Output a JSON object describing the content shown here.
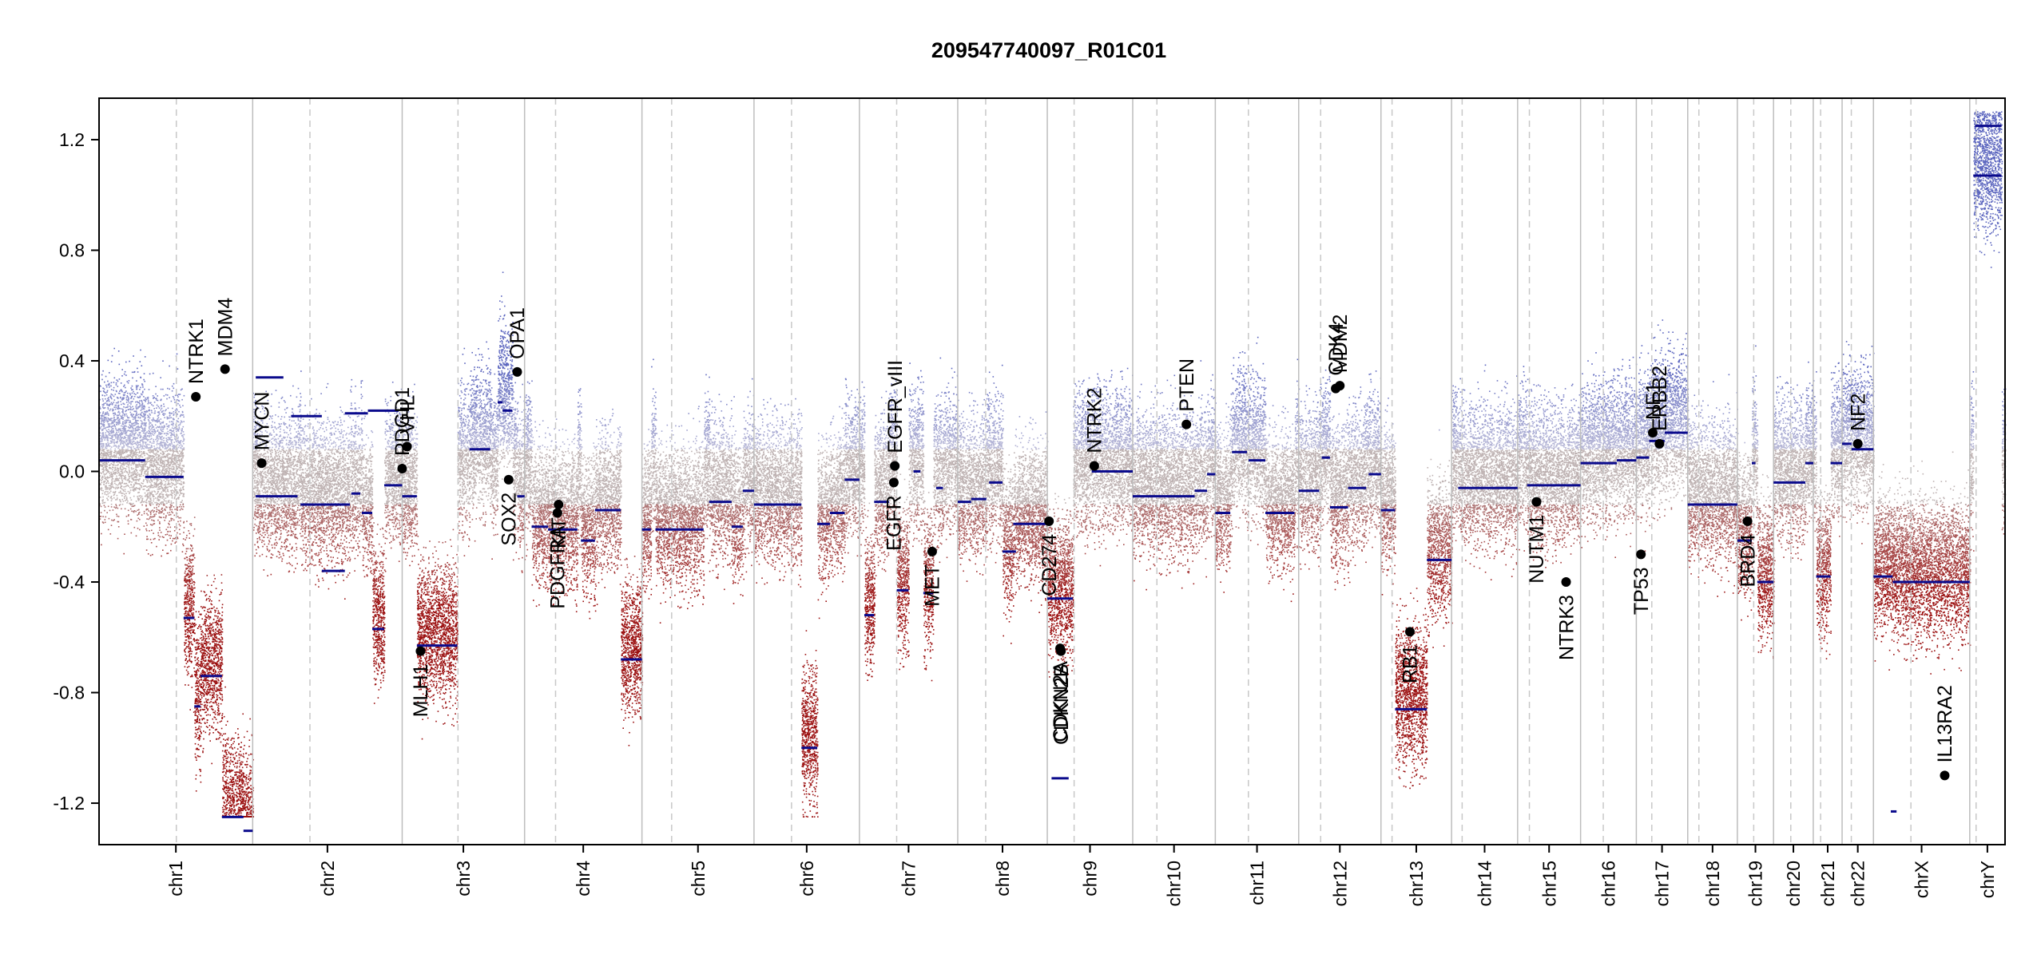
{
  "chart_data": {
    "type": "scatter",
    "title": "209547740097_R01C01",
    "xlabel": "",
    "ylabel": "",
    "ylim": [
      -1.35,
      1.35
    ],
    "y_ticks": [
      1.2,
      0.8,
      0.4,
      0.0,
      -0.4,
      -0.8,
      -1.2
    ],
    "y_tick_labels": [
      "1.2",
      "0.8",
      "0.4",
      "0.0",
      "-0.4",
      "-0.8",
      "-1.2"
    ],
    "grid": false,
    "colors": {
      "gain": "#7b86c4",
      "loss": "#a01010",
      "neutral": "#b9a8a8",
      "segment": "#0a0a8c",
      "gene": "#000000"
    },
    "chromosomes": [
      {
        "name": "chr1",
        "length": 248.9,
        "centromere": 0.503
      },
      {
        "name": "chr2",
        "length": 242.2,
        "centromere": 0.383
      },
      {
        "name": "chr3",
        "length": 198.3,
        "centromere": 0.456
      },
      {
        "name": "chr4",
        "length": 190.2,
        "centromere": 0.264
      },
      {
        "name": "chr5",
        "length": 181.5,
        "centromere": 0.265
      },
      {
        "name": "chr6",
        "length": 170.8,
        "centromere": 0.356
      },
      {
        "name": "chr7",
        "length": 159.3,
        "centromere": 0.379
      },
      {
        "name": "chr8",
        "length": 145.1,
        "centromere": 0.312
      },
      {
        "name": "chr9",
        "length": 138.4,
        "centromere": 0.314
      },
      {
        "name": "chr10",
        "length": 133.8,
        "centromere": 0.293
      },
      {
        "name": "chr11",
        "length": 135.1,
        "centromere": 0.397
      },
      {
        "name": "chr12",
        "length": 133.3,
        "centromere": 0.267
      },
      {
        "name": "chr13",
        "length": 114.4,
        "centromere": 0.157
      },
      {
        "name": "chr14",
        "length": 107.0,
        "centromere": 0.16
      },
      {
        "name": "chr15",
        "length": 102.0,
        "centromere": 0.187
      },
      {
        "name": "chr16",
        "length": 90.3,
        "centromere": 0.407
      },
      {
        "name": "chr17",
        "length": 83.3,
        "centromere": 0.301
      },
      {
        "name": "chr18",
        "length": 80.4,
        "centromere": 0.225
      },
      {
        "name": "chr19",
        "length": 58.6,
        "centromere": 0.452
      },
      {
        "name": "chr20",
        "length": 64.4,
        "centromere": 0.434
      },
      {
        "name": "chr21",
        "length": 46.7,
        "centromere": 0.255
      },
      {
        "name": "chr22",
        "length": 50.8,
        "centromere": 0.294
      },
      {
        "name": "chrX",
        "length": 156.0,
        "centromere": 0.389
      },
      {
        "name": "chrY",
        "length": 57.2,
        "centromere": 0.18
      }
    ],
    "segments": [
      {
        "chr": "chr1",
        "start": 0.0,
        "end": 0.3,
        "value": 0.04
      },
      {
        "chr": "chr1",
        "start": 0.3,
        "end": 0.55,
        "value": -0.02
      },
      {
        "chr": "chr1",
        "start": 0.55,
        "end": 0.62,
        "value": -0.53
      },
      {
        "chr": "chr1",
        "start": 0.62,
        "end": 0.66,
        "value": -0.85
      },
      {
        "chr": "chr1",
        "start": 0.66,
        "end": 0.8,
        "value": -0.74
      },
      {
        "chr": "chr1",
        "start": 0.8,
        "end": 0.94,
        "value": -1.25
      },
      {
        "chr": "chr1",
        "start": 0.94,
        "end": 1.0,
        "value": -1.3
      },
      {
        "chr": "chr1",
        "start": 1.02,
        "end": 1.2,
        "value": 0.34
      },
      {
        "chr": "chr1",
        "start": 1.25,
        "end": 1.45,
        "value": 0.2
      },
      {
        "chr": "chr1",
        "start": 1.45,
        "end": 1.6,
        "value": -0.36
      },
      {
        "chr": "chr1",
        "start": 1.6,
        "end": 1.75,
        "value": 0.21
      },
      {
        "chr": "chr1",
        "start": 1.75,
        "end": 1.95,
        "value": 0.22
      },
      {
        "chr": "chr2",
        "start": 0.02,
        "end": 0.3,
        "value": -0.09
      },
      {
        "chr": "chr2",
        "start": 0.32,
        "end": 0.65,
        "value": -0.12
      },
      {
        "chr": "chr2",
        "start": 0.66,
        "end": 0.72,
        "value": -0.08
      },
      {
        "chr": "chr2",
        "start": 0.73,
        "end": 0.8,
        "value": -0.15
      },
      {
        "chr": "chr2",
        "start": 0.8,
        "end": 0.88,
        "value": -0.57
      },
      {
        "chr": "chr2",
        "start": 0.88,
        "end": 1.0,
        "value": -0.05
      },
      {
        "chr": "chr3",
        "start": 0.0,
        "end": 0.12,
        "value": -0.09
      },
      {
        "chr": "chr3",
        "start": 0.12,
        "end": 0.45,
        "value": -0.63
      },
      {
        "chr": "chr3",
        "start": 0.55,
        "end": 0.72,
        "value": 0.08
      },
      {
        "chr": "chr3",
        "start": 0.78,
        "end": 0.82,
        "value": 0.25
      },
      {
        "chr": "chr3",
        "start": 0.82,
        "end": 0.9,
        "value": 0.22
      },
      {
        "chr": "chr3",
        "start": 0.94,
        "end": 1.0,
        "value": -0.09
      },
      {
        "chr": "chr4",
        "start": 0.06,
        "end": 0.2,
        "value": -0.2
      },
      {
        "chr": "chr4",
        "start": 0.2,
        "end": 0.45,
        "value": -0.21
      },
      {
        "chr": "chr4",
        "start": 0.48,
        "end": 0.6,
        "value": -0.25
      },
      {
        "chr": "chr4",
        "start": 0.6,
        "end": 0.82,
        "value": -0.14
      },
      {
        "chr": "chr4",
        "start": 0.82,
        "end": 1.0,
        "value": -0.68
      },
      {
        "chr": "chr5",
        "start": 0.0,
        "end": 0.08,
        "value": -0.21
      },
      {
        "chr": "chr5",
        "start": 0.12,
        "end": 0.55,
        "value": -0.21
      },
      {
        "chr": "chr5",
        "start": 0.6,
        "end": 0.8,
        "value": -0.11
      },
      {
        "chr": "chr5",
        "start": 0.8,
        "end": 0.9,
        "value": -0.2
      },
      {
        "chr": "chr5",
        "start": 0.9,
        "end": 1.0,
        "value": -0.07
      },
      {
        "chr": "chr6",
        "start": 0.0,
        "end": 0.45,
        "value": -0.12
      },
      {
        "chr": "chr6",
        "start": 0.45,
        "end": 0.6,
        "value": -1.0
      },
      {
        "chr": "chr6",
        "start": 0.6,
        "end": 0.72,
        "value": -0.19
      },
      {
        "chr": "chr6",
        "start": 0.72,
        "end": 0.86,
        "value": -0.15
      },
      {
        "chr": "chr6",
        "start": 0.86,
        "end": 1.0,
        "value": -0.03
      },
      {
        "chr": "chr7",
        "start": 0.05,
        "end": 0.15,
        "value": -0.52
      },
      {
        "chr": "chr7",
        "start": 0.15,
        "end": 0.3,
        "value": -0.11
      },
      {
        "chr": "chr7",
        "start": 0.38,
        "end": 0.5,
        "value": -0.43
      },
      {
        "chr": "chr7",
        "start": 0.55,
        "end": 0.62,
        "value": 0.0
      },
      {
        "chr": "chr7",
        "start": 0.65,
        "end": 0.75,
        "value": -0.44
      },
      {
        "chr": "chr7",
        "start": 0.78,
        "end": 0.85,
        "value": -0.06
      },
      {
        "chr": "chr8",
        "start": 0.0,
        "end": 0.15,
        "value": -0.11
      },
      {
        "chr": "chr8",
        "start": 0.15,
        "end": 0.32,
        "value": -0.1
      },
      {
        "chr": "chr8",
        "start": 0.35,
        "end": 0.5,
        "value": -0.04
      },
      {
        "chr": "chr8",
        "start": 0.5,
        "end": 0.65,
        "value": -0.29
      },
      {
        "chr": "chr8",
        "start": 0.62,
        "end": 1.0,
        "value": -0.19
      },
      {
        "chr": "chr9",
        "start": 0.0,
        "end": 0.3,
        "value": -0.46
      },
      {
        "chr": "chr9",
        "start": 0.05,
        "end": 0.25,
        "value": -1.11
      },
      {
        "chr": "chr9",
        "start": 0.52,
        "end": 1.0,
        "value": 0.0
      },
      {
        "chr": "chr10",
        "start": 0.0,
        "end": 0.75,
        "value": -0.09
      },
      {
        "chr": "chr10",
        "start": 0.75,
        "end": 0.9,
        "value": -0.07
      },
      {
        "chr": "chr10",
        "start": 0.9,
        "end": 1.0,
        "value": -0.01
      },
      {
        "chr": "chr11",
        "start": 0.0,
        "end": 0.18,
        "value": -0.15
      },
      {
        "chr": "chr11",
        "start": 0.2,
        "end": 0.38,
        "value": 0.07
      },
      {
        "chr": "chr11",
        "start": 0.4,
        "end": 0.6,
        "value": 0.04
      },
      {
        "chr": "chr11",
        "start": 0.6,
        "end": 0.95,
        "value": -0.15
      },
      {
        "chr": "chr12",
        "start": 0.0,
        "end": 0.25,
        "value": -0.07
      },
      {
        "chr": "chr12",
        "start": 0.28,
        "end": 0.38,
        "value": 0.05
      },
      {
        "chr": "chr12",
        "start": 0.38,
        "end": 0.6,
        "value": -0.13
      },
      {
        "chr": "chr12",
        "start": 0.6,
        "end": 0.82,
        "value": -0.06
      },
      {
        "chr": "chr12",
        "start": 0.85,
        "end": 1.0,
        "value": -0.01
      },
      {
        "chr": "chr13",
        "start": 0.0,
        "end": 0.2,
        "value": -0.14
      },
      {
        "chr": "chr13",
        "start": 0.2,
        "end": 0.65,
        "value": -0.86
      },
      {
        "chr": "chr13",
        "start": 0.65,
        "end": 1.0,
        "value": -0.32
      },
      {
        "chr": "chr14",
        "start": 0.1,
        "end": 1.0,
        "value": -0.06
      },
      {
        "chr": "chr15",
        "start": 0.15,
        "end": 1.0,
        "value": -0.05
      },
      {
        "chr": "chr16",
        "start": 0.0,
        "end": 0.65,
        "value": 0.03
      },
      {
        "chr": "chr16",
        "start": 0.65,
        "end": 1.0,
        "value": 0.04
      },
      {
        "chr": "chr17",
        "start": 0.0,
        "end": 0.25,
        "value": 0.05
      },
      {
        "chr": "chr17",
        "start": 0.25,
        "end": 0.55,
        "value": 0.11
      },
      {
        "chr": "chr17",
        "start": 0.55,
        "end": 1.0,
        "value": 0.14
      },
      {
        "chr": "chr18",
        "start": 0.0,
        "end": 1.0,
        "value": -0.12
      },
      {
        "chr": "chr19",
        "start": 0.0,
        "end": 0.4,
        "value": -0.25
      },
      {
        "chr": "chr19",
        "start": 0.4,
        "end": 0.5,
        "value": 0.03
      },
      {
        "chr": "chr19",
        "start": 0.55,
        "end": 1.0,
        "value": -0.4
      },
      {
        "chr": "chr20",
        "start": 0.0,
        "end": 0.8,
        "value": -0.04
      },
      {
        "chr": "chr20",
        "start": 0.8,
        "end": 1.0,
        "value": 0.03
      },
      {
        "chr": "chr21",
        "start": 0.1,
        "end": 0.6,
        "value": -0.38
      },
      {
        "chr": "chr21",
        "start": 0.6,
        "end": 1.0,
        "value": 0.03
      },
      {
        "chr": "chr22",
        "start": 0.0,
        "end": 0.3,
        "value": 0.1
      },
      {
        "chr": "chr22",
        "start": 0.3,
        "end": 1.0,
        "value": 0.08
      },
      {
        "chr": "chrX",
        "start": 0.0,
        "end": 0.2,
        "value": -0.38
      },
      {
        "chr": "chrX",
        "start": 0.18,
        "end": 0.24,
        "value": -1.23
      },
      {
        "chr": "chrX",
        "start": 0.2,
        "end": 1.0,
        "value": -0.4
      },
      {
        "chr": "chrY",
        "start": 0.1,
        "end": 0.9,
        "value": 1.07
      },
      {
        "chr": "chrY",
        "start": 0.15,
        "end": 0.9,
        "value": 1.25
      }
    ],
    "gene_markers": [
      {
        "label": "NTRK1",
        "chr": "chr1",
        "pos": 0.63,
        "value": 0.27,
        "anchor": "start"
      },
      {
        "label": "MDM4",
        "chr": "chr1",
        "pos": 0.82,
        "value": 0.37,
        "anchor": "start"
      },
      {
        "label": "MYCN",
        "chr": "chr2",
        "pos": 0.06,
        "value": 0.03,
        "anchor": "start"
      },
      {
        "label": "PDGD1",
        "chr": "chr2",
        "pos": 1.0,
        "value": 0.01,
        "anchor": "start"
      },
      {
        "label": "VHL",
        "chr": "chr3",
        "pos": 0.04,
        "value": 0.09,
        "anchor": "start"
      },
      {
        "label": "MLH1",
        "chr": "chr3",
        "pos": 0.15,
        "value": -0.65,
        "anchor": "end"
      },
      {
        "label": "SOX2",
        "chr": "chr3",
        "pos": 0.87,
        "value": -0.03,
        "anchor": "end"
      },
      {
        "label": "OPA1",
        "chr": "chr3",
        "pos": 0.94,
        "value": 0.36,
        "anchor": "start"
      },
      {
        "label": "PDGFRA",
        "chr": "chr4",
        "pos": 0.28,
        "value": -0.15,
        "anchor": "end"
      },
      {
        "label": "KIT",
        "chr": "chr4",
        "pos": 0.29,
        "value": -0.12,
        "anchor": "end"
      },
      {
        "label": "EGFR",
        "chr": "chr7",
        "pos": 0.35,
        "value": -0.04,
        "anchor": "end"
      },
      {
        "label": "EGFR_vIII",
        "chr": "chr7",
        "pos": 0.36,
        "value": 0.02,
        "anchor": "start"
      },
      {
        "label": "MET",
        "chr": "chr7",
        "pos": 0.74,
        "value": -0.29,
        "anchor": "end"
      },
      {
        "label": "CD274",
        "chr": "chr9",
        "pos": 0.02,
        "value": -0.18,
        "anchor": "end"
      },
      {
        "label": "CDKN2A",
        "chr": "chr9",
        "pos": 0.15,
        "value": -0.64,
        "anchor": "end"
      },
      {
        "label": "CDKN2B",
        "chr": "chr9",
        "pos": 0.16,
        "value": -0.65,
        "anchor": "end"
      },
      {
        "label": "NTRK2",
        "chr": "chr9",
        "pos": 0.55,
        "value": 0.02,
        "anchor": "start"
      },
      {
        "label": "PTEN",
        "chr": "chr10",
        "pos": 0.65,
        "value": 0.17,
        "anchor": "start"
      },
      {
        "label": "CDK4",
        "chr": "chr12",
        "pos": 0.45,
        "value": 0.3,
        "anchor": "start"
      },
      {
        "label": "MDM2",
        "chr": "chr12",
        "pos": 0.5,
        "value": 0.31,
        "anchor": "start"
      },
      {
        "label": "RB1",
        "chr": "chr13",
        "pos": 0.41,
        "value": -0.58,
        "anchor": "end"
      },
      {
        "label": "NUTM1",
        "chr": "chr15",
        "pos": 0.3,
        "value": -0.11,
        "anchor": "end"
      },
      {
        "label": "NTRK3",
        "chr": "chr15",
        "pos": 0.77,
        "value": -0.4,
        "anchor": "end"
      },
      {
        "label": "TP53",
        "chr": "chr17",
        "pos": 0.09,
        "value": -0.3,
        "anchor": "end"
      },
      {
        "label": "NF1",
        "chr": "chr17",
        "pos": 0.32,
        "value": 0.14,
        "anchor": "start"
      },
      {
        "label": "ERBB2",
        "chr": "chr17",
        "pos": 0.45,
        "value": 0.1,
        "anchor": "start"
      },
      {
        "label": "BRD4",
        "chr": "chr19",
        "pos": 0.28,
        "value": -0.18,
        "anchor": "end"
      },
      {
        "label": "NF2",
        "chr": "chr22",
        "pos": 0.5,
        "value": 0.1,
        "anchor": "start"
      },
      {
        "label": "IL13RA2",
        "chr": "chrX",
        "pos": 0.74,
        "value": -1.1,
        "anchor": "start"
      }
    ]
  }
}
